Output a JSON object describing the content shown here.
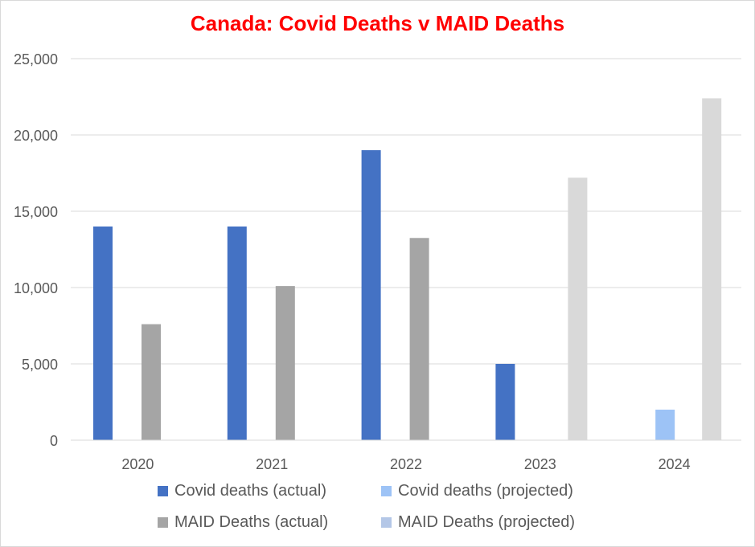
{
  "chart_data": {
    "type": "bar",
    "title": "Canada: Covid Deaths v MAID Deaths",
    "categories": [
      "2020",
      "2021",
      "2022",
      "2023",
      "2024"
    ],
    "ylim": [
      0,
      25000
    ],
    "yticks": [
      0,
      5000,
      10000,
      15000,
      20000,
      25000
    ],
    "ytick_labels": [
      "0",
      "5,000",
      "10,000",
      "15,000",
      "20,000",
      "25,000"
    ],
    "grid": true,
    "legend_position": "bottom",
    "series": [
      {
        "name": "Covid deaths (actual)",
        "color": "#4472c4",
        "values": [
          14000,
          14000,
          19000,
          5000,
          null
        ]
      },
      {
        "name": "Covid deaths (projected)",
        "color": "#9dc3f6",
        "values": [
          null,
          null,
          null,
          null,
          2000
        ]
      },
      {
        "name": "MAID Deaths (actual)",
        "color": "#a5a5a5",
        "values": [
          7600,
          10100,
          13250,
          null,
          null
        ]
      },
      {
        "name": "MAID Deaths (projected)",
        "color": "#d9d9d9",
        "legend_color": "#b4c7e7",
        "values": [
          null,
          null,
          null,
          17200,
          22400
        ]
      }
    ]
  }
}
